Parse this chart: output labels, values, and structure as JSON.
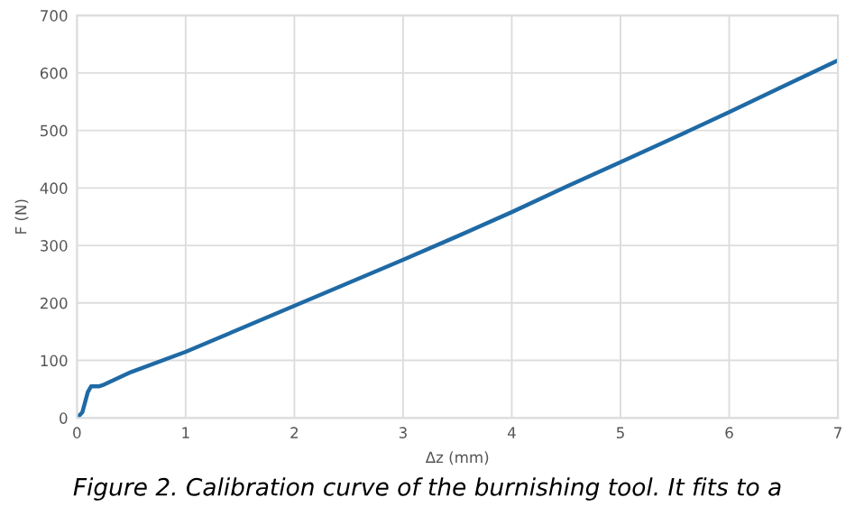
{
  "chart_data": {
    "type": "line",
    "xlabel": "Δz (mm)",
    "ylabel": "F (N)",
    "annotations": [
      "Figure 2. Calibration curve of the burnishing tool. It fits to a"
    ],
    "x": [
      0,
      0.05,
      0.1,
      0.13,
      0.2,
      0.25,
      0.5,
      1,
      1.5,
      2,
      2.5,
      3,
      3.5,
      4,
      4.5,
      5,
      5.5,
      6,
      6.5,
      7
    ],
    "series": [
      {
        "color": "#1f6aa5",
        "values": [
          0,
          10,
          45,
          55,
          55,
          58,
          80,
          115,
          155,
          195,
          235,
          275,
          316,
          358,
          402,
          445,
          488,
          532,
          577,
          622
        ]
      }
    ],
    "xlim": [
      0,
      7
    ],
    "ylim": [
      0,
      700
    ],
    "xticks": [
      0,
      1,
      2,
      3,
      4,
      5,
      6,
      7
    ],
    "yticks": [
      0,
      100,
      200,
      300,
      400,
      500,
      600,
      700
    ],
    "grid": true,
    "line_style": "solid",
    "marker": "none"
  }
}
